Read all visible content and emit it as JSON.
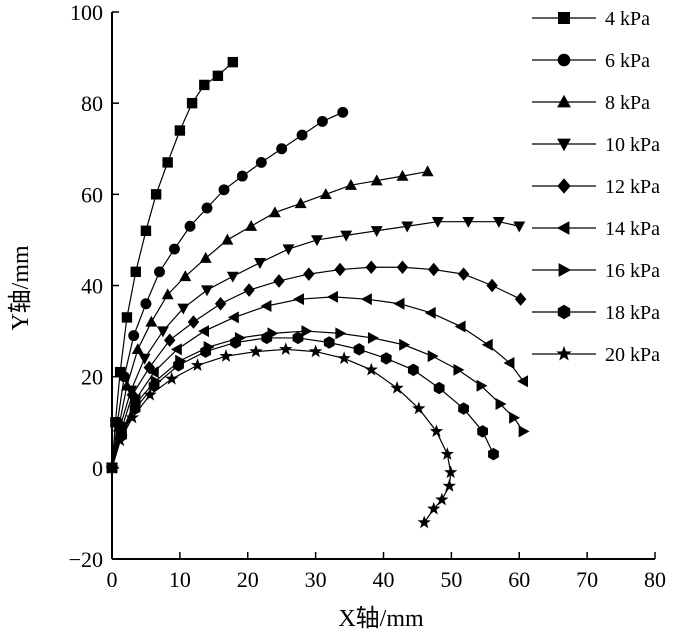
{
  "chart_data": {
    "type": "line",
    "xlabel": "X轴/mm",
    "ylabel": "Y轴/mm",
    "xlim": [
      0,
      80
    ],
    "ylim": [
      -20,
      100
    ],
    "xticks": [
      0,
      10,
      20,
      30,
      40,
      50,
      60,
      70,
      80
    ],
    "yticks": [
      -20,
      0,
      20,
      40,
      60,
      80,
      100
    ],
    "grid": false,
    "legend_position": "top-right",
    "series": [
      {
        "name": "4 kPa",
        "marker": "square",
        "x": [
          0,
          0.5,
          1.2,
          2.2,
          3.5,
          5.0,
          6.5,
          8.2,
          10.0,
          11.8,
          13.6,
          15.6,
          17.8
        ],
        "y": [
          0,
          10,
          21,
          33,
          43,
          52,
          60,
          67,
          74,
          80,
          84,
          86,
          89
        ]
      },
      {
        "name": "6 kPa",
        "marker": "circle",
        "x": [
          0,
          0.8,
          1.8,
          3.2,
          5.0,
          7.0,
          9.2,
          11.5,
          14.0,
          16.5,
          19.2,
          22.0,
          25.0,
          28.0,
          31.0,
          34.0
        ],
        "y": [
          0,
          10,
          20,
          29,
          36,
          43,
          48,
          53,
          57,
          61,
          64,
          67,
          70,
          73,
          76,
          78
        ]
      },
      {
        "name": "8 kPa",
        "marker": "triangle-up",
        "x": [
          0,
          1.0,
          2.2,
          3.8,
          5.8,
          8.2,
          10.8,
          13.8,
          17.0,
          20.5,
          24.0,
          27.8,
          31.5,
          35.2,
          39.0,
          42.8,
          46.5
        ],
        "y": [
          0,
          9,
          18,
          26,
          32,
          38,
          42,
          46,
          50,
          53,
          56,
          58,
          60,
          62,
          63,
          64,
          65
        ]
      },
      {
        "name": "10 kPa",
        "marker": "triangle-down",
        "x": [
          0,
          1.2,
          2.8,
          4.8,
          7.5,
          10.5,
          14.0,
          17.8,
          21.8,
          26.0,
          30.2,
          34.5,
          39.0,
          43.5,
          48.0,
          52.5,
          57.0,
          60.0
        ],
        "y": [
          0,
          9,
          17,
          24,
          30,
          35,
          39,
          42,
          45,
          48,
          50,
          51,
          52,
          53,
          54,
          54,
          54,
          53
        ]
      },
      {
        "name": "12 kPa",
        "marker": "diamond",
        "x": [
          0,
          1.3,
          3.0,
          5.5,
          8.5,
          12.0,
          16.0,
          20.2,
          24.6,
          29.0,
          33.6,
          38.2,
          42.8,
          47.4,
          51.8,
          56.0,
          60.2
        ],
        "y": [
          0,
          8,
          16,
          22,
          28,
          32,
          36,
          39,
          41,
          42.5,
          43.5,
          44,
          44,
          43.5,
          42.5,
          40,
          37
        ]
      },
      {
        "name": "14 kPa",
        "marker": "triangle-left",
        "x": [
          0,
          1.5,
          3.5,
          6.2,
          9.6,
          13.6,
          18.0,
          22.8,
          27.6,
          32.6,
          37.6,
          42.4,
          47.0,
          51.4,
          55.4,
          58.6,
          60.6
        ],
        "y": [
          0,
          8,
          15,
          21,
          26,
          30,
          33,
          35.5,
          37,
          37.5,
          37,
          36,
          34,
          31,
          27,
          23,
          19
        ]
      },
      {
        "name": "16 kPa",
        "marker": "triangle-right",
        "x": [
          0,
          1.4,
          3.4,
          6.4,
          10.0,
          14.2,
          18.8,
          23.6,
          28.6,
          33.6,
          38.4,
          43.0,
          47.2,
          51.0,
          54.4,
          57.2,
          59.2,
          60.6
        ],
        "y": [
          0,
          7,
          14,
          19,
          23.5,
          26.5,
          28.5,
          29.5,
          30,
          29.5,
          28.5,
          27,
          24.5,
          21.5,
          18,
          14,
          11,
          8
        ]
      },
      {
        "name": "18 kPa",
        "marker": "hexagon",
        "x": [
          0,
          1.4,
          3.4,
          6.2,
          9.8,
          13.8,
          18.2,
          22.8,
          27.4,
          32.0,
          36.4,
          40.4,
          44.4,
          48.2,
          51.8,
          54.6,
          56.2
        ],
        "y": [
          0,
          7,
          13,
          18,
          22.5,
          25.5,
          27.5,
          28.5,
          28.5,
          27.5,
          26,
          24,
          21.5,
          17.5,
          13,
          8,
          3
        ]
      },
      {
        "name": "20 kPa",
        "marker": "star",
        "x": [
          0,
          1.2,
          3.0,
          5.6,
          8.8,
          12.6,
          16.8,
          21.2,
          25.6,
          30.0,
          34.2,
          38.2,
          42.0,
          45.2,
          47.8,
          49.4,
          49.9,
          49.7,
          48.6,
          47.4,
          46.0
        ],
        "y": [
          0,
          6,
          11,
          16,
          19.5,
          22.5,
          24.5,
          25.5,
          26,
          25.5,
          24,
          21.5,
          17.5,
          13,
          8,
          3,
          -1,
          -4,
          -7,
          -9,
          -12
        ]
      }
    ]
  }
}
